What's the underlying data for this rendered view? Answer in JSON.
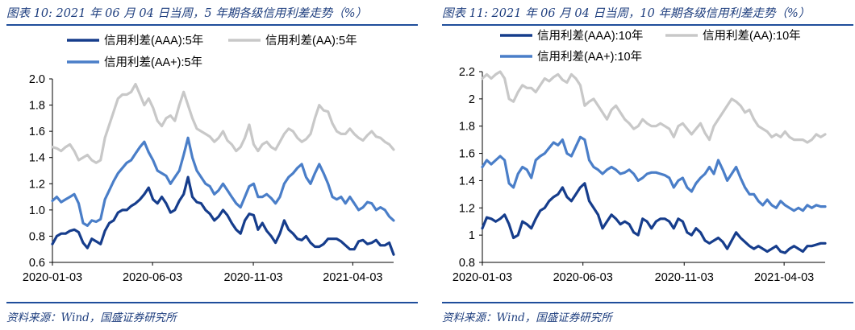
{
  "charts": [
    {
      "title": "图表 10:  2021 年 06 月 04 日当周，5 年期各级信用利差走势（%）",
      "source": "资料来源：Wind，国盛证券研究所",
      "chart_data": {
        "type": "line",
        "x_tick_labels": [
          "2020-01-03",
          "2020-06-03",
          "2020-11-03",
          "2021-04-03"
        ],
        "x_range": [
          "2020-01-03",
          "2021-06-04"
        ],
        "ylim": [
          0.6,
          2.0
        ],
        "y_ticks": [
          "0.6",
          "0.8",
          "1.0",
          "1.2",
          "1.4",
          "1.6",
          "1.8",
          "2.0"
        ],
        "legend_position": "top",
        "grid": false,
        "series": [
          {
            "name": "信用利差(AAA):5年",
            "color": "#163d8c",
            "values": [
              0.74,
              0.8,
              0.82,
              0.82,
              0.84,
              0.85,
              0.83,
              0.75,
              0.71,
              0.78,
              0.76,
              0.74,
              0.84,
              0.9,
              0.92,
              0.98,
              1.0,
              1.0,
              1.03,
              1.05,
              1.08,
              1.12,
              1.17,
              1.08,
              1.05,
              1.1,
              1.05,
              0.98,
              1.0,
              1.07,
              1.12,
              1.25,
              1.1,
              1.06,
              1.05,
              1.0,
              0.97,
              0.92,
              0.95,
              1.0,
              0.96,
              0.9,
              0.85,
              0.82,
              0.92,
              0.97,
              0.96,
              0.85,
              0.9,
              0.84,
              0.8,
              0.75,
              0.82,
              0.92,
              0.85,
              0.82,
              0.78,
              0.77,
              0.8,
              0.75,
              0.72,
              0.72,
              0.74,
              0.78,
              0.78,
              0.78,
              0.76,
              0.73,
              0.7,
              0.7,
              0.76,
              0.77,
              0.74,
              0.75,
              0.77,
              0.73,
              0.73,
              0.75,
              0.66
            ]
          },
          {
            "name": "信用利差(AA):5年",
            "color": "#c8c8c8",
            "values": [
              1.48,
              1.47,
              1.45,
              1.48,
              1.5,
              1.45,
              1.38,
              1.4,
              1.42,
              1.38,
              1.36,
              1.38,
              1.55,
              1.65,
              1.75,
              1.85,
              1.88,
              1.88,
              1.9,
              1.96,
              1.88,
              1.8,
              1.85,
              1.78,
              1.68,
              1.64,
              1.7,
              1.72,
              1.68,
              1.8,
              1.9,
              1.8,
              1.7,
              1.62,
              1.6,
              1.58,
              1.56,
              1.52,
              1.55,
              1.6,
              1.53,
              1.5,
              1.45,
              1.48,
              1.55,
              1.65,
              1.5,
              1.45,
              1.5,
              1.52,
              1.48,
              1.46,
              1.52,
              1.58,
              1.62,
              1.6,
              1.55,
              1.52,
              1.54,
              1.58,
              1.7,
              1.8,
              1.76,
              1.75,
              1.66,
              1.6,
              1.58,
              1.58,
              1.62,
              1.58,
              1.55,
              1.53,
              1.57,
              1.6,
              1.56,
              1.55,
              1.52,
              1.5,
              1.46
            ]
          },
          {
            "name": "信用利差(AA+):5年",
            "color": "#4a7ec8",
            "values": [
              1.07,
              1.1,
              1.06,
              1.08,
              1.1,
              1.12,
              1.05,
              0.9,
              0.88,
              0.92,
              0.91,
              0.93,
              1.08,
              1.15,
              1.22,
              1.28,
              1.32,
              1.36,
              1.38,
              1.43,
              1.48,
              1.52,
              1.44,
              1.38,
              1.3,
              1.28,
              1.26,
              1.2,
              1.25,
              1.3,
              1.42,
              1.55,
              1.4,
              1.3,
              1.25,
              1.2,
              1.18,
              1.12,
              1.15,
              1.2,
              1.15,
              1.1,
              1.05,
              1.02,
              1.1,
              1.18,
              1.2,
              1.1,
              1.1,
              1.12,
              1.09,
              1.05,
              1.1,
              1.2,
              1.25,
              1.28,
              1.32,
              1.35,
              1.25,
              1.2,
              1.28,
              1.35,
              1.28,
              1.2,
              1.1,
              1.08,
              1.1,
              1.05,
              1.1,
              1.05,
              1.0,
              1.02,
              1.06,
              1.05,
              1.0,
              1.02,
              1.0,
              0.95,
              0.92
            ]
          }
        ]
      }
    },
    {
      "title": "图表 11:  2021 年 06 月 04 日当周，10 年期各级信用利差走势（%）",
      "source": "资料来源：Wind，国盛证券研究所",
      "chart_data": {
        "type": "line",
        "x_tick_labels": [
          "2020-01-03",
          "2020-06-03",
          "2020-11-03",
          "2021-04-03"
        ],
        "x_range": [
          "2020-01-03",
          "2021-06-04"
        ],
        "ylim": [
          0.8,
          2.2
        ],
        "y_ticks": [
          "0.8",
          "1",
          "1.2",
          "1.4",
          "1.6",
          "1.8",
          "2",
          "2.2"
        ],
        "legend_position": "top",
        "grid": false,
        "series": [
          {
            "name": "信用利差(AAA):10年",
            "color": "#163d8c",
            "values": [
              1.05,
              1.13,
              1.12,
              1.1,
              1.12,
              1.15,
              1.08,
              0.98,
              1.0,
              1.1,
              1.08,
              1.05,
              1.12,
              1.18,
              1.2,
              1.25,
              1.28,
              1.3,
              1.35,
              1.28,
              1.25,
              1.3,
              1.35,
              1.38,
              1.25,
              1.2,
              1.15,
              1.05,
              1.1,
              1.15,
              1.12,
              1.08,
              1.1,
              1.08,
              1.02,
              1.0,
              1.12,
              1.1,
              1.05,
              1.1,
              1.12,
              1.12,
              1.1,
              1.05,
              1.12,
              1.1,
              1.02,
              1.0,
              1.05,
              1.02,
              0.96,
              0.94,
              0.96,
              0.98,
              0.95,
              0.9,
              0.96,
              1.02,
              0.98,
              0.95,
              0.92,
              0.9,
              0.92,
              0.9,
              0.88,
              0.9,
              0.92,
              0.88,
              0.87,
              0.9,
              0.92,
              0.9,
              0.88,
              0.92,
              0.92,
              0.93,
              0.94,
              0.94
            ]
          },
          {
            "name": "信用利差(AA):10年",
            "color": "#c8c8c8",
            "values": [
              2.15,
              2.18,
              2.15,
              2.18,
              2.2,
              2.15,
              2.0,
              1.98,
              2.05,
              2.1,
              2.08,
              2.08,
              2.05,
              2.1,
              2.15,
              2.13,
              2.16,
              2.18,
              2.14,
              2.12,
              2.18,
              2.15,
              2.1,
              1.95,
              1.98,
              2.0,
              1.95,
              1.9,
              1.85,
              1.92,
              1.95,
              1.9,
              1.85,
              1.82,
              1.78,
              1.8,
              1.85,
              1.82,
              1.8,
              1.8,
              1.82,
              1.8,
              1.78,
              1.72,
              1.8,
              1.82,
              1.78,
              1.74,
              1.78,
              1.82,
              1.75,
              1.7,
              1.8,
              1.85,
              1.9,
              1.95,
              2.0,
              1.98,
              1.95,
              1.9,
              1.92,
              1.85,
              1.8,
              1.78,
              1.76,
              1.72,
              1.74,
              1.72,
              1.76,
              1.72,
              1.7,
              1.7,
              1.7,
              1.68,
              1.7,
              1.74,
              1.72,
              1.74
            ]
          },
          {
            "name": "信用利差(AA+):10年",
            "color": "#4a7ec8",
            "values": [
              1.5,
              1.55,
              1.52,
              1.55,
              1.58,
              1.55,
              1.38,
              1.35,
              1.45,
              1.5,
              1.48,
              1.42,
              1.55,
              1.58,
              1.6,
              1.64,
              1.68,
              1.66,
              1.7,
              1.6,
              1.58,
              1.65,
              1.72,
              1.7,
              1.55,
              1.5,
              1.48,
              1.45,
              1.48,
              1.5,
              1.48,
              1.45,
              1.46,
              1.48,
              1.45,
              1.4,
              1.42,
              1.45,
              1.46,
              1.46,
              1.45,
              1.44,
              1.42,
              1.35,
              1.4,
              1.42,
              1.35,
              1.32,
              1.38,
              1.42,
              1.45,
              1.5,
              1.45,
              1.55,
              1.48,
              1.4,
              1.45,
              1.5,
              1.42,
              1.35,
              1.3,
              1.3,
              1.25,
              1.22,
              1.26,
              1.22,
              1.2,
              1.25,
              1.22,
              1.2,
              1.18,
              1.2,
              1.18,
              1.22,
              1.2,
              1.22,
              1.21,
              1.21
            ]
          }
        ]
      }
    }
  ]
}
